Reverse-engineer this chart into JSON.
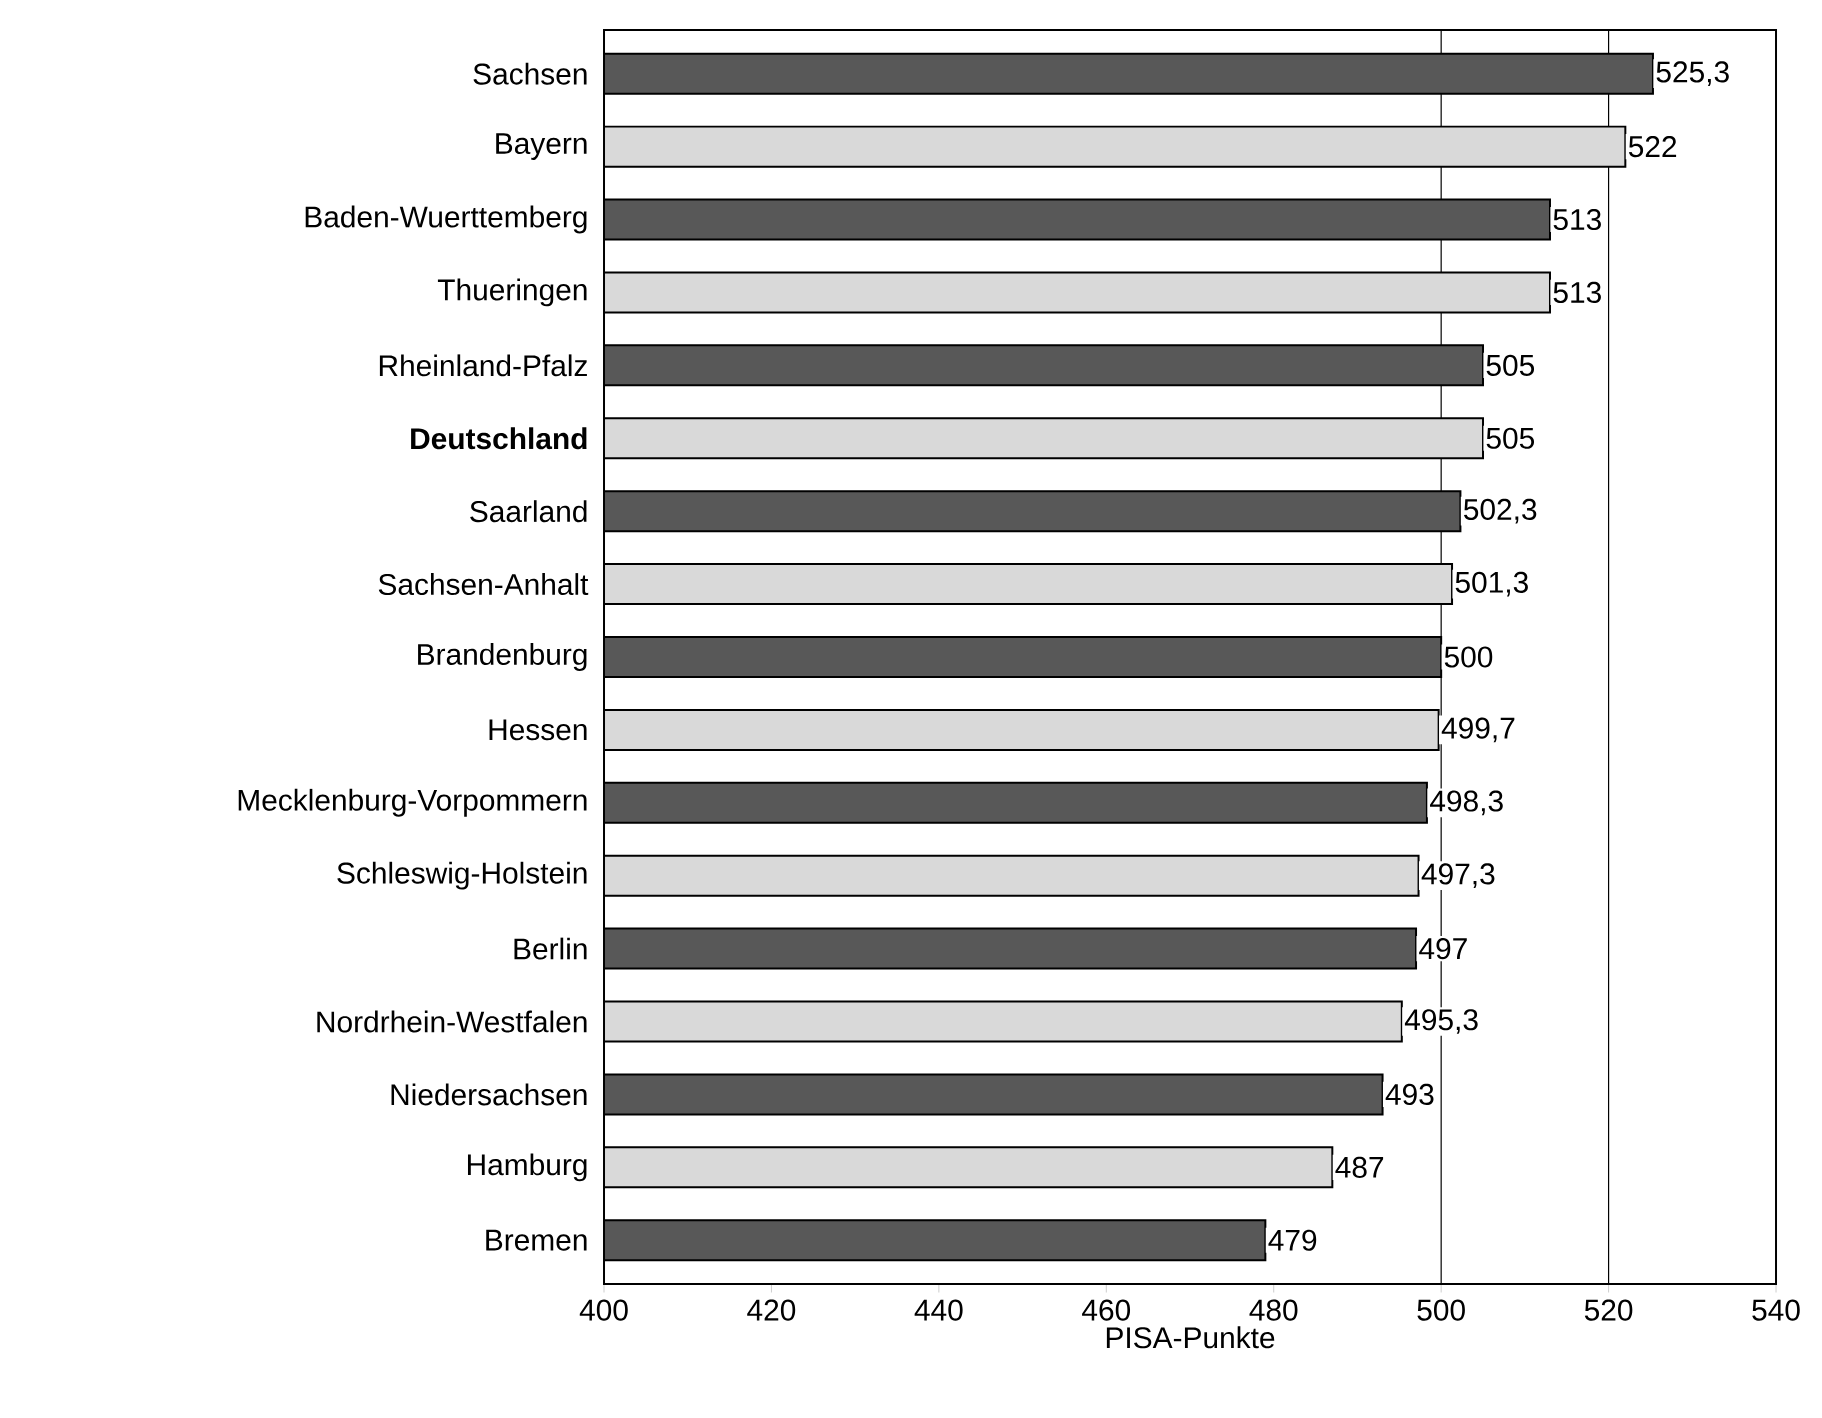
{
  "chart_data": {
    "type": "bar",
    "orientation": "horizontal",
    "xlabel": "PISA-Punkte",
    "categories": [
      "Sachsen",
      "Bayern",
      "Baden-Wuerttemberg",
      "Thueringen",
      "Rheinland-Pfalz",
      "**Deutschland**",
      "Saarland",
      "Sachsen-Anhalt",
      "Brandenburg",
      "Hessen",
      "Mecklenburg-Vorpommern",
      "Schleswig-Holstein",
      "Berlin",
      "Nordrhein-Westfalen",
      "Niedersachsen",
      "Hamburg",
      "Bremen"
    ],
    "values": [
      525.3,
      522,
      513,
      513,
      505,
      505,
      502.3,
      501.3,
      500,
      499.7,
      498.3,
      497.3,
      497,
      495.3,
      493,
      487,
      479
    ],
    "value_labels": [
      "525,3",
      "522",
      "513",
      "513",
      "505",
      "505",
      "502,3",
      "501,3",
      "500",
      "499,7",
      "498,3",
      "497,3",
      "497",
      "495,3",
      "493",
      "487",
      "479"
    ],
    "colors": [
      "#585858",
      "#d9d9d9",
      "#585858",
      "#d9d9d9",
      "#585858",
      "#d9d9d9",
      "#585858",
      "#d9d9d9",
      "#585858",
      "#d9d9d9",
      "#585858",
      "#d9d9d9",
      "#585858",
      "#d9d9d9",
      "#585858",
      "#d9d9d9",
      "#585858"
    ],
    "xlim": [
      400,
      540
    ],
    "xticks": [
      400,
      420,
      440,
      460,
      480,
      500,
      520,
      540
    ],
    "ref_lines": [
      {
        "axis": "x",
        "value": 500
      },
      {
        "axis": "x",
        "value": 520
      }
    ]
  }
}
